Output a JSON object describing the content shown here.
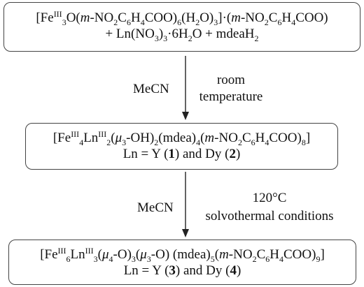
{
  "scheme": {
    "box1": {
      "line1": {
        "t1": "[Fe",
        "t2": "III",
        "t3": "3",
        "t4": "O(",
        "t5": "m",
        "t6": "-NO",
        "t7": "2",
        "t8": "C",
        "t9": "6",
        "t10": "H",
        "t11": "4",
        "t12": "COO)",
        "t13": "6",
        "t14": "(H",
        "t15": "2",
        "t16": "O)",
        "t17": "3",
        "t18": "]·(",
        "t19": "m",
        "t20": "-NO",
        "t21": "2",
        "t22": "C",
        "t23": "6",
        "t24": "H",
        "t25": "4",
        "t26": "COO)"
      },
      "line2": {
        "t1": "+ Ln(NO",
        "t2": "3",
        "t3": ")",
        "t4": "3",
        "t5": "·6H",
        "t6": "2",
        "t7": "O + mdeaH",
        "t8": "2"
      }
    },
    "step1": {
      "solvent": "MeCN",
      "condition_line1": "room",
      "condition_line2": "temperature"
    },
    "box2": {
      "line1": {
        "t1": "[Fe",
        "t2": "III",
        "t3": "4",
        "t4": "Ln",
        "t5": "III",
        "t6": "2",
        "t7": "(",
        "t8": "μ",
        "t9": "3",
        "t10": "-OH)",
        "t11": "2",
        "t12": "(mdea)",
        "t13": "4",
        "t14": "(",
        "t15": "m",
        "t16": "-NO",
        "t17": "2",
        "t18": "C",
        "t19": "6",
        "t20": "H",
        "t21": "4",
        "t22": "COO)",
        "t23": "8",
        "t24": "]"
      },
      "line2": {
        "t1": "Ln = Y (",
        "t2": "1",
        "t3": ") and Dy (",
        "t4": "2",
        "t5": ")"
      }
    },
    "step2": {
      "solvent": "MeCN",
      "condition_line1": "120°C",
      "condition_line2": "solvothermal conditions"
    },
    "box3": {
      "line1": {
        "t1": "[Fe",
        "t2": "III",
        "t3": "6",
        "t4": "Ln",
        "t5": "III",
        "t6": "3",
        "t7": "(",
        "t8": "μ",
        "t9": "4",
        "t10": "-O)",
        "t11": "3",
        "t12": "(",
        "t13": "μ",
        "t14": "3",
        "t15": "-O) (mdea)",
        "t16": "5",
        "t17": "(",
        "t18": "m",
        "t19": "-NO",
        "t20": "2",
        "t21": "C",
        "t22": "6",
        "t23": "H",
        "t24": "4",
        "t25": "COO)",
        "t26": "9",
        "t27": "]"
      },
      "line2": {
        "t1": "Ln = Y (",
        "t2": "3",
        "t3": ") and Dy (",
        "t4": "4",
        "t5": ")"
      }
    }
  }
}
